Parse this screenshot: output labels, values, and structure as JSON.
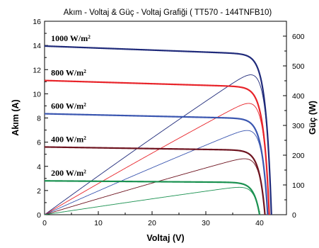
{
  "chart_data": {
    "type": "line",
    "title": "Akım - Voltaj & Güç - Voltaj Grafiği (  TT570 - 144TNFB10)",
    "xlabel": "Voltaj (V)",
    "ylabel_left": "Akım (A)",
    "ylabel_right": "Güç (W)",
    "xlim": [
      0,
      45
    ],
    "ylim_left": [
      0,
      16
    ],
    "ylim_right": [
      0,
      650
    ],
    "x_ticks": [
      "0",
      "10",
      "20",
      "30",
      "40"
    ],
    "y_left_ticks": [
      "0",
      "2",
      "4",
      "6",
      "8",
      "10",
      "12",
      "14",
      "16"
    ],
    "y_right_ticks": [
      "0",
      "100",
      "200",
      "300",
      "400",
      "500",
      "600"
    ],
    "grid": false,
    "series": [
      {
        "name": "1000 W/m²",
        "color": "#1f2a7a",
        "isc": 13.95,
        "voc": 42.2,
        "pmax": 470,
        "vmp": 35.9
      },
      {
        "name": "800 W/m²",
        "color": "#e8242a",
        "isc": 11.1,
        "voc": 41.8,
        "pmax": 374,
        "vmp": 35.7
      },
      {
        "name": "600 W/m²",
        "color": "#3a56b0",
        "isc": 8.35,
        "voc": 41.5,
        "pmax": 283,
        "vmp": 35.7
      },
      {
        "name": "400 W/m²",
        "color": "#6e1420",
        "isc": 5.6,
        "voc": 41.0,
        "pmax": 188,
        "vmp": 35.4
      },
      {
        "name": "200 W/m²",
        "color": "#1a9150",
        "isc": 2.8,
        "voc": 40.0,
        "pmax": 92,
        "vmp": 35.0
      }
    ]
  }
}
